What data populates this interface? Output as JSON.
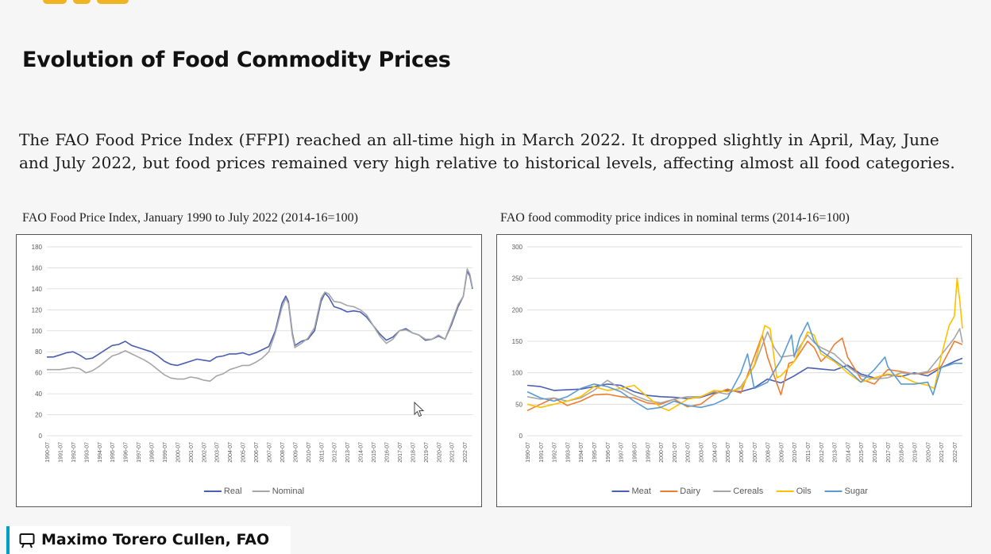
{
  "slide": {
    "title": "Evolution of Food Commodity Prices",
    "intro": "The FAO Food Price Index (FFPI) reached an all-time high in March 2022. It dropped slightly in April, May, June and July 2022, but food prices remained very high relative to historical levels, affecting almost all food categories.",
    "presenter": "Maximo Torero Cullen, FAO",
    "presenter_icon": "presentation-icon",
    "cursor_icon": "mouse-pointer-icon"
  },
  "chart_data": [
    {
      "type": "line",
      "title": "FAO Food Price Index, January 1990 to July 2022 (2014-16=100)",
      "x_categories": [
        "1990-07",
        "1991-07",
        "1992-07",
        "1993-07",
        "1994-07",
        "1995-07",
        "1996-07",
        "1997-07",
        "1998-07",
        "1999-07",
        "2000-07",
        "2001-07",
        "2002-07",
        "2003-07",
        "2004-07",
        "2005-07",
        "2006-07",
        "2007-07",
        "2008-07",
        "2009-07",
        "2010-07",
        "2011-07",
        "2012-07",
        "2013-07",
        "2014-07",
        "2015-07",
        "2016-07",
        "2017-07",
        "2018-07",
        "2019-07",
        "2020-07",
        "2021-07",
        "2022-07"
      ],
      "ylim": [
        0,
        180
      ],
      "yticks": [
        0,
        20,
        40,
        60,
        80,
        100,
        120,
        140,
        160,
        180
      ],
      "grid": true,
      "legend_position": "bottom",
      "series": [
        {
          "name": "Real",
          "color": "#4a5fb4",
          "x": [
            1990.0,
            1990.5,
            1991.0,
            1991.5,
            1992.0,
            1992.5,
            1993.0,
            1993.5,
            1994.0,
            1994.5,
            1995.0,
            1995.5,
            1996.0,
            1996.5,
            1997.0,
            1997.5,
            1998.0,
            1998.5,
            1999.0,
            1999.5,
            2000.0,
            2000.5,
            2001.0,
            2001.5,
            2002.0,
            2002.5,
            2003.0,
            2003.5,
            2004.0,
            2004.5,
            2005.0,
            2005.5,
            2006.0,
            2006.5,
            2007.0,
            2007.5,
            2008.0,
            2008.3,
            2008.5,
            2008.8,
            2009.0,
            2009.5,
            2010.0,
            2010.5,
            2011.0,
            2011.3,
            2011.6,
            2012.0,
            2012.5,
            2013.0,
            2013.5,
            2014.0,
            2014.5,
            2015.0,
            2015.5,
            2016.0,
            2016.5,
            2017.0,
            2017.5,
            2018.0,
            2018.5,
            2019.0,
            2019.5,
            2020.0,
            2020.5,
            2021.0,
            2021.5,
            2021.9,
            2022.2,
            2022.4,
            2022.6
          ],
          "y": [
            75,
            75,
            77,
            79,
            80,
            77,
            73,
            74,
            78,
            82,
            86,
            87,
            90,
            86,
            84,
            82,
            80,
            76,
            71,
            68,
            67,
            69,
            71,
            73,
            72,
            71,
            75,
            76,
            78,
            78,
            79,
            77,
            79,
            82,
            85,
            100,
            126,
            133,
            128,
            98,
            86,
            90,
            92,
            100,
            128,
            136,
            132,
            123,
            121,
            118,
            119,
            118,
            113,
            105,
            97,
            91,
            94,
            100,
            102,
            98,
            96,
            91,
            92,
            95,
            92,
            106,
            123,
            133,
            157,
            152,
            140
          ]
        },
        {
          "name": "Nominal",
          "color": "#a6a6a6",
          "x": [
            1990.0,
            1990.5,
            1991.0,
            1991.5,
            1992.0,
            1992.5,
            1993.0,
            1993.5,
            1994.0,
            1994.5,
            1995.0,
            1995.5,
            1996.0,
            1996.5,
            1997.0,
            1997.5,
            1998.0,
            1998.5,
            1999.0,
            1999.5,
            2000.0,
            2000.5,
            2001.0,
            2001.5,
            2002.0,
            2002.5,
            2003.0,
            2003.5,
            2004.0,
            2004.5,
            2005.0,
            2005.5,
            2006.0,
            2006.5,
            2007.0,
            2007.5,
            2008.0,
            2008.3,
            2008.5,
            2008.8,
            2009.0,
            2009.5,
            2010.0,
            2010.5,
            2011.0,
            2011.3,
            2011.6,
            2012.0,
            2012.5,
            2013.0,
            2013.5,
            2014.0,
            2014.5,
            2015.0,
            2015.5,
            2016.0,
            2016.5,
            2017.0,
            2017.5,
            2018.0,
            2018.5,
            2019.0,
            2019.5,
            2020.0,
            2020.5,
            2021.0,
            2021.5,
            2021.9,
            2022.2,
            2022.4,
            2022.6
          ],
          "y": [
            63,
            63,
            63,
            64,
            65,
            64,
            60,
            62,
            66,
            71,
            76,
            78,
            81,
            78,
            75,
            72,
            68,
            63,
            58,
            55,
            54,
            54,
            56,
            55,
            53,
            52,
            57,
            59,
            63,
            65,
            67,
            67,
            70,
            74,
            80,
            98,
            122,
            131,
            126,
            96,
            84,
            88,
            93,
            103,
            131,
            137,
            135,
            128,
            127,
            124,
            123,
            120,
            115,
            105,
            95,
            88,
            92,
            100,
            101,
            98,
            96,
            92,
            92,
            96,
            92,
            108,
            125,
            133,
            159,
            154,
            141
          ]
        }
      ]
    },
    {
      "type": "line",
      "title": "FAO food commodity price indices in nominal terms (2014-16=100)",
      "x_categories": [
        "1990-07",
        "1991-07",
        "1992-07",
        "1993-07",
        "1994-07",
        "1995-07",
        "1996-07",
        "1997-07",
        "1998-07",
        "1999-07",
        "2000-07",
        "2001-07",
        "2002-07",
        "2003-07",
        "2004-07",
        "2005-07",
        "2006-07",
        "2007-07",
        "2008-07",
        "2009-07",
        "2010-07",
        "2011-07",
        "2012-07",
        "2013-07",
        "2014-07",
        "2015-07",
        "2016-07",
        "2017-07",
        "2018-07",
        "2019-07",
        "2020-07",
        "2021-07",
        "2022-07"
      ],
      "ylim": [
        0,
        300
      ],
      "yticks": [
        0,
        50,
        100,
        150,
        200,
        250,
        300
      ],
      "grid": true,
      "legend_position": "bottom",
      "series": [
        {
          "name": "Meat",
          "color": "#4a5fb4",
          "x": [
            1990,
            1991,
            1992,
            1993,
            1994,
            1995,
            1996,
            1997,
            1998,
            1999,
            2000,
            2001,
            2002,
            2003,
            2004,
            2005,
            2006,
            2007,
            2008,
            2009,
            2010,
            2011,
            2012,
            2013,
            2014,
            2015,
            2016,
            2017,
            2018,
            2019,
            2020,
            2021,
            2022,
            2022.6
          ],
          "y": [
            80,
            78,
            72,
            73,
            74,
            78,
            82,
            80,
            70,
            64,
            62,
            61,
            59,
            61,
            68,
            72,
            70,
            76,
            90,
            84,
            95,
            108,
            106,
            104,
            112,
            98,
            92,
            97,
            94,
            100,
            95,
            108,
            118,
            123
          ]
        },
        {
          "name": "Dairy",
          "color": "#ed7d31",
          "x": [
            1990,
            1991,
            1992,
            1993,
            1994,
            1995,
            1996,
            1997,
            1998,
            1999,
            2000,
            2001,
            2002,
            2003,
            2004,
            2005,
            2006,
            2007,
            2007.6,
            2008,
            2009,
            2009.6,
            2010,
            2011,
            2011.5,
            2012,
            2012.5,
            2013,
            2013.6,
            2014,
            2015,
            2016,
            2017,
            2018,
            2019,
            2020,
            2021,
            2022,
            2022.6
          ],
          "y": [
            40,
            50,
            60,
            48,
            55,
            65,
            66,
            62,
            60,
            52,
            50,
            58,
            46,
            50,
            66,
            74,
            68,
            125,
            160,
            125,
            65,
            115,
            118,
            150,
            140,
            118,
            128,
            145,
            155,
            125,
            90,
            82,
            105,
            102,
            98,
            100,
            110,
            150,
            145
          ]
        },
        {
          "name": "Cereals",
          "color": "#a6a6a6",
          "x": [
            1990,
            1991,
            1992,
            1993,
            1994,
            1995,
            1996,
            1997,
            1998,
            1999,
            2000,
            2001,
            2002,
            2003,
            2004,
            2005,
            2006,
            2007,
            2008,
            2008.5,
            2009,
            2010,
            2011,
            2011.5,
            2012,
            2013,
            2014,
            2015,
            2016,
            2017,
            2018,
            2019,
            2020,
            2021,
            2022,
            2022.4,
            2022.6
          ],
          "y": [
            62,
            58,
            60,
            55,
            60,
            72,
            88,
            75,
            64,
            56,
            52,
            58,
            62,
            62,
            70,
            66,
            78,
            110,
            165,
            140,
            125,
            128,
            160,
            148,
            140,
            130,
            110,
            95,
            90,
            92,
            100,
            98,
            102,
            128,
            155,
            170,
            148
          ]
        },
        {
          "name": "Oils",
          "color": "#ffc000",
          "x": [
            1990,
            1991,
            1992,
            1993,
            1994,
            1995,
            1996,
            1997,
            1998,
            1999,
            2000,
            2000.6,
            2001,
            2002,
            2003,
            2004,
            2005,
            2006,
            2007,
            2007.8,
            2008.2,
            2008.7,
            2009,
            2010,
            2011,
            2011.5,
            2012,
            2013,
            2014,
            2015,
            2016,
            2017,
            2018,
            2019,
            2020,
            2020.5,
            2021,
            2021.6,
            2022.0,
            2022.2,
            2022.4,
            2022.6
          ],
          "y": [
            50,
            45,
            50,
            55,
            62,
            78,
            72,
            75,
            80,
            62,
            45,
            40,
            45,
            58,
            62,
            72,
            70,
            75,
            112,
            175,
            170,
            92,
            95,
            118,
            165,
            160,
            130,
            118,
            100,
            85,
            92,
            98,
            95,
            85,
            80,
            75,
            125,
            175,
            190,
            250,
            215,
            170
          ]
        },
        {
          "name": "Sugar",
          "color": "#5b9bd5",
          "x": [
            1990,
            1991,
            1992,
            1993,
            1994,
            1995,
            1996,
            1997,
            1998,
            1999,
            2000,
            2001,
            2002,
            2003,
            2004,
            2005,
            2006,
            2006.5,
            2007,
            2008,
            2009,
            2009.8,
            2010,
            2010.4,
            2011.0,
            2011.5,
            2012,
            2013,
            2014,
            2015,
            2016,
            2016.8,
            2017,
            2018,
            2019,
            2020,
            2020.4,
            2021,
            2022,
            2022.6
          ],
          "y": [
            70,
            60,
            55,
            62,
            75,
            82,
            78,
            70,
            55,
            42,
            45,
            55,
            48,
            45,
            50,
            60,
            100,
            130,
            75,
            85,
            120,
            160,
            125,
            155,
            180,
            150,
            135,
            120,
            105,
            85,
            105,
            125,
            110,
            82,
            82,
            85,
            65,
            108,
            115,
            115
          ]
        }
      ]
    }
  ]
}
